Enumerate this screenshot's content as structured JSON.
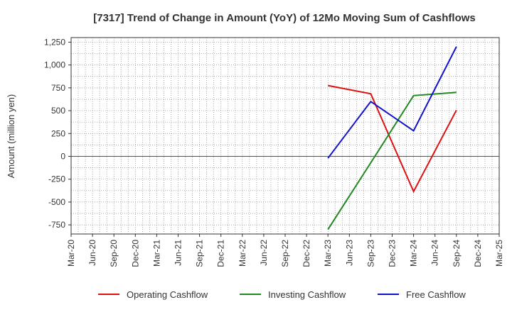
{
  "chart_data": {
    "type": "line",
    "title": "[7317]  Trend of Change in Amount (YoY) of 12Mo Moving Sum of Cashflows",
    "xlabel": "",
    "ylabel": "Amount (million yen)",
    "ylim": [
      -850,
      1300
    ],
    "y_ticks": [
      1250,
      1000,
      750,
      500,
      250,
      0,
      -250,
      -500,
      -750
    ],
    "y_tick_labels": [
      "1,250",
      "1,000",
      "750",
      "500",
      "250",
      "0",
      "-250",
      "-500",
      "-750"
    ],
    "categories": [
      "Mar-20",
      "Jun-20",
      "Sep-20",
      "Dec-20",
      "Mar-21",
      "Jun-21",
      "Sep-21",
      "Dec-21",
      "Mar-22",
      "Jun-22",
      "Sep-22",
      "Dec-22",
      "Mar-23",
      "Jun-23",
      "Sep-23",
      "Dec-23",
      "Mar-24",
      "Jun-24",
      "Sep-24",
      "Dec-24",
      "Mar-25"
    ],
    "grid": true,
    "legend_position": "bottom",
    "series": [
      {
        "name": "Operating Cashflow",
        "color": "#dd1111",
        "points": [
          [
            "Mar-23",
            775
          ],
          [
            "Sep-23",
            685
          ],
          [
            "Mar-24",
            -385
          ],
          [
            "Sep-24",
            505
          ]
        ]
      },
      {
        "name": "Investing Cashflow",
        "color": "#228822",
        "points": [
          [
            "Mar-23",
            -800
          ],
          [
            "Sep-23",
            -70
          ],
          [
            "Mar-24",
            665
          ],
          [
            "Sep-24",
            700
          ]
        ]
      },
      {
        "name": "Free Cashflow",
        "color": "#1111cc",
        "points": [
          [
            "Mar-23",
            -20
          ],
          [
            "Sep-23",
            600
          ],
          [
            "Mar-24",
            280
          ],
          [
            "Sep-24",
            1200
          ]
        ]
      }
    ]
  }
}
